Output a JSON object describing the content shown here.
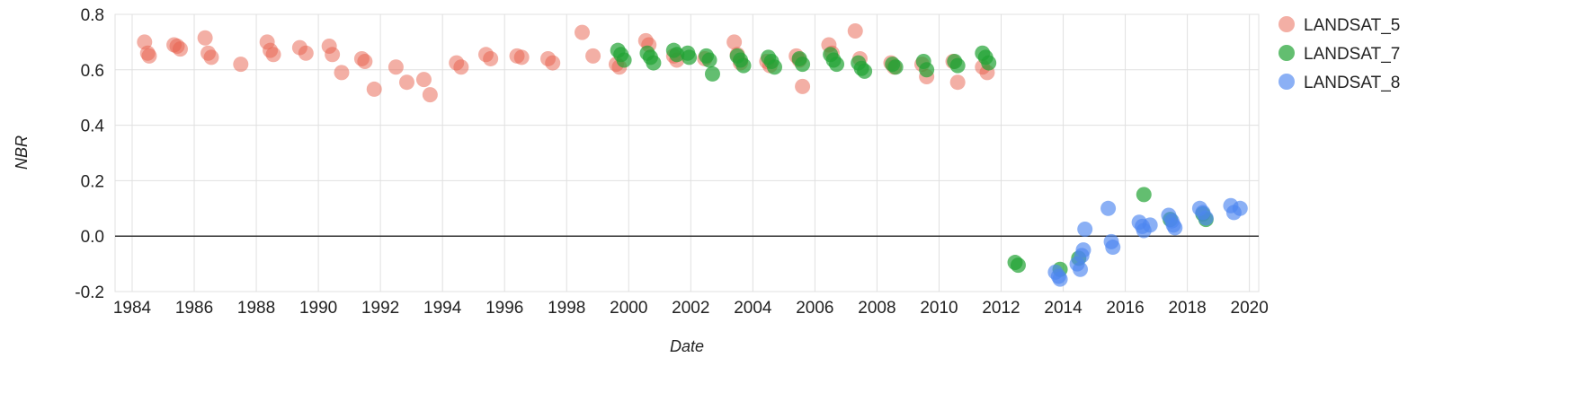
{
  "chart_data": {
    "type": "scatter",
    "title": "",
    "xlabel": "Date",
    "ylabel": "NBR",
    "xlim": [
      1983.45,
      2020.3
    ],
    "ylim": [
      -0.2,
      0.8
    ],
    "x_ticks": [
      1984,
      1986,
      1988,
      1990,
      1992,
      1994,
      1996,
      1998,
      2000,
      2002,
      2004,
      2006,
      2008,
      2010,
      2012,
      2014,
      2016,
      2018,
      2020
    ],
    "y_ticks": [
      -0.2,
      0.0,
      0.2,
      0.4,
      0.6,
      0.8
    ],
    "grid": true,
    "grid_color": "#e0e0e0",
    "baseline_value": 0.0,
    "baseline_color": "#333333",
    "background_color": "#ffffff",
    "legend_position": "right",
    "series": [
      {
        "name": "LANDSAT_5",
        "color": "#e8604c",
        "opacity": 0.5,
        "points": [
          [
            1984.4,
            0.7
          ],
          [
            1984.5,
            0.66
          ],
          [
            1984.55,
            0.65
          ],
          [
            1985.35,
            0.69
          ],
          [
            1985.45,
            0.685
          ],
          [
            1985.55,
            0.675
          ],
          [
            1986.35,
            0.715
          ],
          [
            1986.45,
            0.66
          ],
          [
            1986.55,
            0.645
          ],
          [
            1987.5,
            0.62
          ],
          [
            1988.35,
            0.7
          ],
          [
            1988.45,
            0.67
          ],
          [
            1988.55,
            0.655
          ],
          [
            1989.4,
            0.68
          ],
          [
            1989.6,
            0.66
          ],
          [
            1990.35,
            0.685
          ],
          [
            1990.45,
            0.655
          ],
          [
            1990.75,
            0.59
          ],
          [
            1991.4,
            0.64
          ],
          [
            1991.5,
            0.63
          ],
          [
            1991.8,
            0.53
          ],
          [
            1992.5,
            0.61
          ],
          [
            1992.85,
            0.555
          ],
          [
            1993.4,
            0.565
          ],
          [
            1993.6,
            0.51
          ],
          [
            1994.45,
            0.625
          ],
          [
            1994.6,
            0.61
          ],
          [
            1995.4,
            0.655
          ],
          [
            1995.55,
            0.64
          ],
          [
            1996.4,
            0.65
          ],
          [
            1996.55,
            0.645
          ],
          [
            1997.4,
            0.64
          ],
          [
            1997.55,
            0.625
          ],
          [
            1998.5,
            0.735
          ],
          [
            1998.85,
            0.65
          ],
          [
            1999.6,
            0.62
          ],
          [
            1999.7,
            0.61
          ],
          [
            2000.55,
            0.705
          ],
          [
            2000.65,
            0.69
          ],
          [
            2001.45,
            0.65
          ],
          [
            2001.55,
            0.635
          ],
          [
            2002.45,
            0.64
          ],
          [
            2003.4,
            0.7
          ],
          [
            2003.5,
            0.655
          ],
          [
            2003.6,
            0.625
          ],
          [
            2004.45,
            0.63
          ],
          [
            2004.55,
            0.615
          ],
          [
            2005.4,
            0.65
          ],
          [
            2005.5,
            0.635
          ],
          [
            2005.6,
            0.54
          ],
          [
            2006.45,
            0.69
          ],
          [
            2006.55,
            0.66
          ],
          [
            2007.3,
            0.74
          ],
          [
            2007.45,
            0.64
          ],
          [
            2008.45,
            0.625
          ],
          [
            2008.55,
            0.61
          ],
          [
            2009.45,
            0.62
          ],
          [
            2009.6,
            0.575
          ],
          [
            2010.45,
            0.63
          ],
          [
            2010.6,
            0.555
          ],
          [
            2011.4,
            0.61
          ],
          [
            2011.55,
            0.59
          ]
        ]
      },
      {
        "name": "LANDSAT_7",
        "color": "#21a233",
        "opacity": 0.7,
        "points": [
          [
            1999.65,
            0.67
          ],
          [
            1999.75,
            0.655
          ],
          [
            1999.85,
            0.635
          ],
          [
            2000.6,
            0.66
          ],
          [
            2000.7,
            0.645
          ],
          [
            2000.8,
            0.625
          ],
          [
            2001.45,
            0.67
          ],
          [
            2001.55,
            0.655
          ],
          [
            2001.9,
            0.66
          ],
          [
            2001.95,
            0.645
          ],
          [
            2002.5,
            0.65
          ],
          [
            2002.6,
            0.635
          ],
          [
            2002.7,
            0.585
          ],
          [
            2003.5,
            0.65
          ],
          [
            2003.6,
            0.635
          ],
          [
            2003.7,
            0.615
          ],
          [
            2004.5,
            0.645
          ],
          [
            2004.6,
            0.63
          ],
          [
            2004.7,
            0.61
          ],
          [
            2005.5,
            0.64
          ],
          [
            2005.6,
            0.62
          ],
          [
            2006.5,
            0.655
          ],
          [
            2006.6,
            0.635
          ],
          [
            2006.7,
            0.62
          ],
          [
            2007.4,
            0.625
          ],
          [
            2007.5,
            0.605
          ],
          [
            2007.6,
            0.595
          ],
          [
            2008.5,
            0.62
          ],
          [
            2008.6,
            0.61
          ],
          [
            2009.5,
            0.63
          ],
          [
            2009.6,
            0.6
          ],
          [
            2010.5,
            0.63
          ],
          [
            2010.6,
            0.615
          ],
          [
            2011.4,
            0.66
          ],
          [
            2011.5,
            0.645
          ],
          [
            2011.6,
            0.625
          ],
          [
            2012.45,
            -0.095
          ],
          [
            2012.55,
            -0.105
          ],
          [
            2013.9,
            -0.12
          ],
          [
            2014.5,
            -0.08
          ],
          [
            2016.6,
            0.15
          ],
          [
            2017.45,
            0.06
          ],
          [
            2018.5,
            0.08
          ],
          [
            2018.6,
            0.06
          ]
        ]
      },
      {
        "name": "LANDSAT_8",
        "color": "#4d86f0",
        "opacity": 0.65,
        "points": [
          [
            2013.75,
            -0.13
          ],
          [
            2013.85,
            -0.145
          ],
          [
            2013.9,
            -0.155
          ],
          [
            2014.45,
            -0.1
          ],
          [
            2014.55,
            -0.12
          ],
          [
            2014.6,
            -0.07
          ],
          [
            2014.65,
            -0.05
          ],
          [
            2014.7,
            0.025
          ],
          [
            2015.45,
            0.1
          ],
          [
            2015.55,
            -0.02
          ],
          [
            2015.6,
            -0.04
          ],
          [
            2016.45,
            0.05
          ],
          [
            2016.55,
            0.035
          ],
          [
            2016.6,
            0.02
          ],
          [
            2016.8,
            0.04
          ],
          [
            2017.4,
            0.075
          ],
          [
            2017.5,
            0.055
          ],
          [
            2017.55,
            0.04
          ],
          [
            2017.6,
            0.03
          ],
          [
            2018.4,
            0.1
          ],
          [
            2018.5,
            0.085
          ],
          [
            2018.6,
            0.065
          ],
          [
            2019.4,
            0.11
          ],
          [
            2019.5,
            0.085
          ],
          [
            2019.7,
            0.1
          ]
        ]
      }
    ]
  }
}
